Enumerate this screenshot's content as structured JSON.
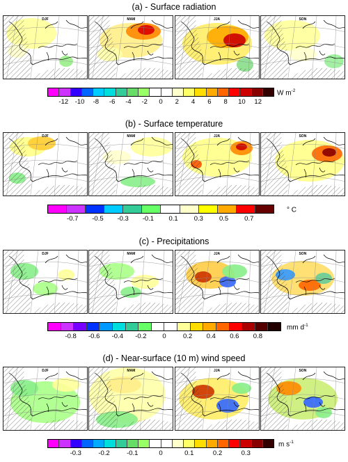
{
  "figure": {
    "panels": [
      {
        "id": "a",
        "title": "(a) - Surface radiation",
        "seasons": [
          "DJF",
          "MAM",
          "JJA",
          "SON"
        ],
        "unit": "W m",
        "unit_sup": "-2",
        "ticks": [
          "-12",
          "-10",
          "-8",
          "-6",
          "-4",
          "-2",
          "0",
          "2",
          "4",
          "6",
          "8",
          "10",
          "12"
        ],
        "colors": [
          "#ff00ff",
          "#cc33ff",
          "#3300ff",
          "#0066ff",
          "#00ccff",
          "#00dddd",
          "#33cc99",
          "#66dd66",
          "#99ff66",
          "#ffffff",
          "#ffffff",
          "#ffffcc",
          "#ffff66",
          "#ffdd00",
          "#ffaa00",
          "#ff6600",
          "#ff0000",
          "#cc0000",
          "#880000",
          "#330000"
        ]
      },
      {
        "id": "b",
        "title": "(b) - Surface temperature",
        "seasons": [
          "DJF",
          "MAM",
          "JJA",
          "SON"
        ],
        "unit": "° C",
        "unit_sup": "",
        "ticks": [
          "-0.7",
          "-0.5",
          "-0.3",
          "-0.1",
          "0.1",
          "0.3",
          "0.5",
          "0.7"
        ],
        "colors": [
          "#ff00ff",
          "#cc33ff",
          "#0033ff",
          "#00ccff",
          "#33cc99",
          "#66ff66",
          "#ffffff",
          "#ffffcc",
          "#ffff00",
          "#ffaa00",
          "#ff0000",
          "#660000"
        ]
      },
      {
        "id": "c",
        "title": "(c) - Precipitations",
        "seasons": [
          "DJF",
          "MAM",
          "JJA",
          "SON"
        ],
        "unit": "mm d",
        "unit_sup": "-1",
        "ticks": [
          "-0.8",
          "-0.6",
          "-0.4",
          "-0.2",
          "0",
          "0.2",
          "0.4",
          "0.6",
          "0.8"
        ],
        "colors": [
          "#ff00ff",
          "#cc33ff",
          "#7700ff",
          "#0033ff",
          "#0099ff",
          "#00dddd",
          "#33cc99",
          "#66ff66",
          "#ffffff",
          "#ffffff",
          "#ffff99",
          "#ffdd00",
          "#ffaa00",
          "#ff6600",
          "#ff0000",
          "#aa0000",
          "#550000",
          "#220000"
        ]
      },
      {
        "id": "d",
        "title": "(d) - Near-surface (10 m) wind speed",
        "seasons": [
          "DJF",
          "MAM",
          "JJA",
          "SON"
        ],
        "unit": "m s",
        "unit_sup": "-1",
        "ticks": [
          "-0.3",
          "-0.2",
          "-0.1",
          "0",
          "0.1",
          "0.2",
          "0.3"
        ],
        "colors": [
          "#ff00ff",
          "#cc33ff",
          "#3300ff",
          "#0066ff",
          "#00aaff",
          "#00dddd",
          "#33cc99",
          "#66dd66",
          "#99ff66",
          "#ffffff",
          "#ffffff",
          "#ffffcc",
          "#ffff66",
          "#ffdd00",
          "#ffaa00",
          "#ff6600",
          "#ff0000",
          "#cc0000",
          "#880000",
          "#330000"
        ]
      }
    ]
  },
  "chart_data": {
    "type": "heatmap",
    "layout": "4 panels x 4 seasonal maps (DJF, MAM, JJA, SON) over Europe / Mediterranean, hatching = non-significant",
    "panels": [
      {
        "title": "(a) - Surface radiation",
        "colorbar_ticks": [
          -12,
          -10,
          -8,
          -6,
          -4,
          -2,
          0,
          2,
          4,
          6,
          8,
          10,
          12
        ],
        "unit": "W m-2"
      },
      {
        "title": "(b) - Surface temperature",
        "colorbar_ticks": [
          -0.7,
          -0.5,
          -0.3,
          -0.1,
          0.1,
          0.3,
          0.5,
          0.7
        ],
        "unit": "° C"
      },
      {
        "title": "(c) - Precipitations",
        "colorbar_ticks": [
          -0.8,
          -0.6,
          -0.4,
          -0.2,
          0,
          0.2,
          0.4,
          0.6,
          0.8
        ],
        "unit": "mm d-1"
      },
      {
        "title": "(d) - Near-surface (10 m) wind speed",
        "colorbar_ticks": [
          -0.3,
          -0.2,
          -0.1,
          0,
          0.1,
          0.2,
          0.3
        ],
        "unit": "m s-1"
      }
    ]
  }
}
